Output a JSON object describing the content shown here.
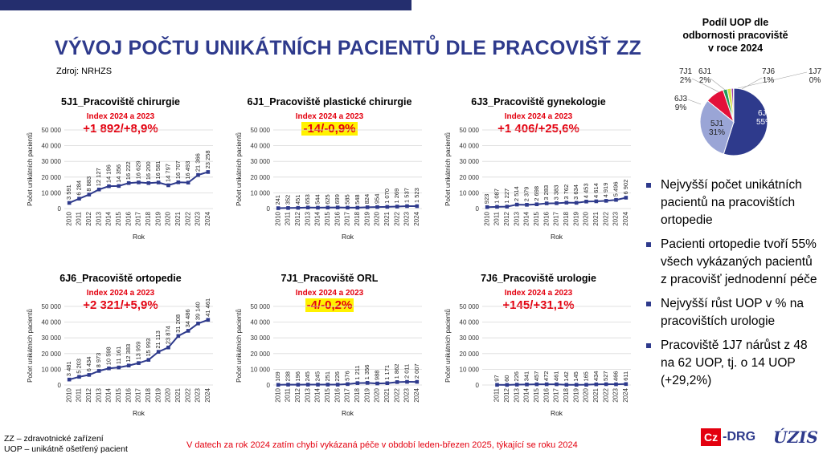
{
  "header": {
    "title": "VÝVOJ POČTU UNIKÁTNÍCH PACIENTŮ DLE PRACOVIŠŤ ZZ",
    "source": "Zdroj: NRHZS"
  },
  "chart_data": [
    {
      "type": "line",
      "title": "5J1_Pracoviště chirurgie",
      "index_label": "Index 2024 a 2023",
      "change": "+1 892/+8,9%",
      "highlight": false,
      "xlabel": "Rok",
      "ylabel": "Počet unikátních pacientů",
      "ylim": [
        0,
        50000
      ],
      "yticks": [
        "0",
        "10 000",
        "20 000",
        "30 000",
        "40 000",
        "50 000"
      ],
      "x": [
        "2010",
        "2011",
        "2012",
        "2013",
        "2014",
        "2015",
        "2016",
        "2017",
        "2018",
        "2019",
        "2020",
        "2021",
        "2022",
        "2023",
        "2024"
      ],
      "values": [
        3591,
        6284,
        8883,
        12127,
        14196,
        14356,
        16222,
        16629,
        16200,
        16581,
        14797,
        16707,
        16493,
        21366,
        23258
      ],
      "labels": [
        "3 591",
        "6 284",
        "8 883",
        "12 127",
        "14 196",
        "14 356",
        "16 222",
        "16 629",
        "16 200",
        "16 581",
        "14 797",
        "16 707",
        "16 493",
        "21 366",
        "23 258"
      ],
      "color": "#2E3A8C"
    },
    {
      "type": "line",
      "title": "6J1_Pracoviště plastické chirurgie",
      "index_label": "Index 2024 a 2023",
      "change": "-14/-0,9%",
      "highlight": true,
      "xlabel": "Rok",
      "ylabel": "Počet unikátních pacientů",
      "ylim": [
        0,
        50000
      ],
      "yticks": [
        "0",
        "10 000",
        "20 000",
        "30 000",
        "40 000",
        "50 000"
      ],
      "x": [
        "2010",
        "2011",
        "2012",
        "2013",
        "2014",
        "2015",
        "2016",
        "2017",
        "2018",
        "2019",
        "2020",
        "2021",
        "2022",
        "2023",
        "2024"
      ],
      "values": [
        241,
        352,
        451,
        653,
        544,
        625,
        699,
        585,
        548,
        824,
        954,
        1070,
        1269,
        1537,
        1523
      ],
      "labels": [
        "241",
        "352",
        "451",
        "653",
        "544",
        "625",
        "699",
        "585",
        "548",
        "824",
        "954",
        "1 070",
        "1 269",
        "1 537",
        "1 523"
      ],
      "color": "#2E3A8C"
    },
    {
      "type": "line",
      "title": "6J3_Pracoviště gynekologie",
      "index_label": "Index 2024 a 2023",
      "change": "+1 406/+25,6%",
      "highlight": false,
      "xlabel": "Rok",
      "ylabel": "Počet unikátních pacientů",
      "ylim": [
        0,
        50000
      ],
      "yticks": [
        "0",
        "10 000",
        "20 000",
        "30 000",
        "40 000",
        "50 000"
      ],
      "x": [
        "2010",
        "2011",
        "2012",
        "2013",
        "2014",
        "2015",
        "2016",
        "2017",
        "2018",
        "2019",
        "2020",
        "2021",
        "2022",
        "2023",
        "2024"
      ],
      "values": [
        923,
        1087,
        1227,
        2514,
        2379,
        2698,
        3283,
        3383,
        3762,
        3634,
        4453,
        4614,
        4919,
        5496,
        6902
      ],
      "labels": [
        "923",
        "1 087",
        "1 227",
        "2 514",
        "2 379",
        "2 698",
        "3 283",
        "3 383",
        "3 762",
        "3 634",
        "4 453",
        "4 614",
        "4 919",
        "5 496",
        "6 902"
      ],
      "color": "#2E3A8C"
    },
    {
      "type": "line",
      "title": "6J6_Pracoviště ortopedie",
      "index_label": "Index 2024 a 2023",
      "change": "+2 321/+5,9%",
      "highlight": false,
      "xlabel": "Rok",
      "ylabel": "Počet unikátních pacientů",
      "ylim": [
        0,
        50000
      ],
      "yticks": [
        "0",
        "10 000",
        "20 000",
        "30 000",
        "40 000",
        "50 000"
      ],
      "x": [
        "2010",
        "2011",
        "2012",
        "2013",
        "2014",
        "2015",
        "2016",
        "2017",
        "2018",
        "2019",
        "2020",
        "2021",
        "2022",
        "2023",
        "2024"
      ],
      "values": [
        3481,
        5203,
        6434,
        8973,
        10598,
        11161,
        12383,
        13959,
        15993,
        21113,
        23874,
        31208,
        34486,
        39140,
        41461
      ],
      "labels": [
        "3 481",
        "5 203",
        "6 434",
        "8 973",
        "10 598",
        "11 161",
        "12 383",
        "13 959",
        "15 993",
        "21 113",
        "23 874",
        "31 208",
        "34 486",
        "39 140",
        "41 461"
      ],
      "color": "#2E3A8C"
    },
    {
      "type": "line",
      "title": "7J1_Pracoviště ORL",
      "index_label": "Index 2024 a 2023",
      "change": "-4/-0,2%",
      "highlight": true,
      "xlabel": "Rok",
      "ylabel": "Počet unikátních pacientů",
      "ylim": [
        0,
        50000
      ],
      "yticks": [
        "0",
        "10 000",
        "20 000",
        "30 000",
        "40 000",
        "50 000"
      ],
      "x": [
        "2010",
        "2011",
        "2012",
        "2013",
        "2014",
        "2015",
        "2016",
        "2017",
        "2018",
        "2019",
        "2020",
        "2021",
        "2022",
        "2023",
        "2024"
      ],
      "values": [
        109,
        238,
        196,
        245,
        245,
        251,
        226,
        576,
        1211,
        1356,
        988,
        1171,
        1862,
        2011,
        2007
      ],
      "labels": [
        "109",
        "238",
        "196",
        "245",
        "245",
        "251",
        "226",
        "576",
        "1 211",
        "1 356",
        "988",
        "1 171",
        "1 862",
        "2 011",
        "2 007"
      ],
      "color": "#2E3A8C"
    },
    {
      "type": "line",
      "title": "7J6_Pracoviště urologie",
      "index_label": "Index 2024 a 2023",
      "change": "+145/+31,1%",
      "highlight": false,
      "xlabel": "Rok",
      "ylabel": "Počet unikátních pacientů",
      "ylim": [
        0,
        50000
      ],
      "yticks": [
        "0",
        "10 000",
        "20 000",
        "30 000",
        "40 000",
        "50 000"
      ],
      "x": [
        "2011",
        "2012",
        "2013",
        "2014",
        "2015",
        "2016",
        "2017",
        "2018",
        "2019",
        "2020",
        "2021",
        "2022",
        "2023",
        "2024"
      ],
      "values": [
        97,
        60,
        226,
        341,
        457,
        472,
        461,
        142,
        145,
        165,
        434,
        527,
        466,
        611
      ],
      "labels": [
        "97",
        "60",
        "226",
        "341",
        "457",
        "472",
        "461",
        "142",
        "145",
        "165",
        "434",
        "527",
        "466",
        "611"
      ],
      "color": "#2E3A8C"
    },
    {
      "type": "pie",
      "title_lines": [
        "Podíl UOP dle",
        "odbornosti pracoviště",
        "v roce 2024"
      ],
      "slices": [
        {
          "label": "6J6",
          "pct": "55%",
          "value": 55,
          "color": "#2E3A8C"
        },
        {
          "label": "5J1",
          "pct": "31%",
          "value": 31,
          "color": "#9AA5D6"
        },
        {
          "label": "6J3",
          "pct": "9%",
          "value": 9,
          "color": "#E3103A"
        },
        {
          "label": "7J1",
          "pct": "2%",
          "value": 2,
          "color": "#1F9C5A"
        },
        {
          "label": "6J1",
          "pct": "2%",
          "value": 2,
          "color": "#D4E04A"
        },
        {
          "label": "7J6",
          "pct": "1%",
          "value": 1,
          "color": "#A23BA8"
        },
        {
          "label": "1J7",
          "pct": "0%",
          "value": 0.2,
          "color": "#5B6FB5"
        }
      ]
    }
  ],
  "bullets": [
    "Nejvyšší počet unikátních pacientů na pracovištích ortopedie",
    "Pacienti ortopedie tvoří 55% všech vykázaných pacientů z pracovišť jednodenní péče",
    "Nejvyšší růst UOP  v % na pracovištích urologie",
    "Pracoviště 1J7 nárůst z 48 na 62 UOP, tj. o 14 UOP (+29,2%)"
  ],
  "abbreviations": [
    "ZZ – zdravotnické zařízení",
    "UOP – unikátně ošetřený pacient"
  ],
  "footnote": "V datech za rok 2024 zatím chybí vykázaná péče v období leden-březen 2025, týkající se roku 2024",
  "logos": {
    "czdrg_cz": "Cz",
    "czdrg_drg": "-DRG",
    "uzis": "ÚZIS"
  }
}
